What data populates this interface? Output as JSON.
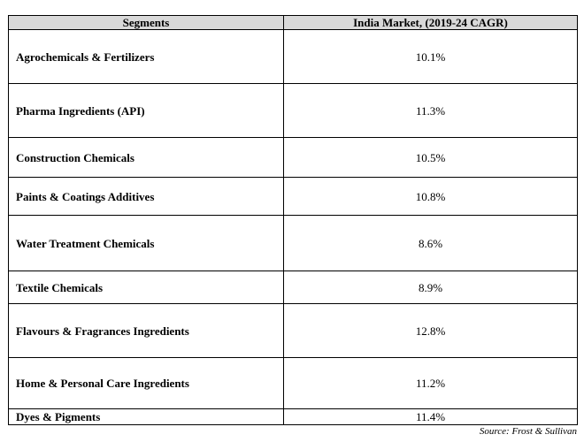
{
  "table": {
    "headers": [
      "Segments",
      "India Market, (2019-24 CAGR)"
    ],
    "rows": [
      {
        "segment": "Agrochemicals & Fertilizers",
        "cagr": "10.1%"
      },
      {
        "segment": "Pharma Ingredients (API)",
        "cagr": "11.3%"
      },
      {
        "segment": "Construction Chemicals",
        "cagr": "10.5%"
      },
      {
        "segment": "Paints & Coatings Additives",
        "cagr": "10.8%"
      },
      {
        "segment": "Water Treatment Chemicals",
        "cagr": "8.6%"
      },
      {
        "segment": "Textile Chemicals",
        "cagr": "8.9%"
      },
      {
        "segment": "Flavours & Fragrances Ingredients",
        "cagr": "12.8%"
      },
      {
        "segment": "Home & Personal Care Ingredients",
        "cagr": "11.2%"
      },
      {
        "segment": "Dyes & Pigments",
        "cagr": "11.4%"
      }
    ]
  },
  "source": "Source: Frost & Sullivan",
  "colors": {
    "header_background": "#d9d9d9",
    "border": "#000000",
    "text": "#000000"
  }
}
